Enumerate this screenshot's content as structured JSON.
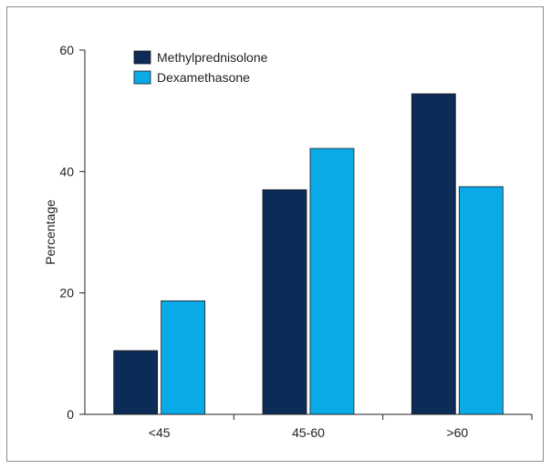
{
  "chart_data": {
    "type": "bar",
    "title": "",
    "xlabel": "",
    "ylabel": "Percentage",
    "ylim": [
      0,
      60
    ],
    "yticks": [
      0,
      20,
      40,
      60
    ],
    "categories": [
      "<45",
      "45-60",
      ">60"
    ],
    "series": [
      {
        "name": "Methylprednisolone",
        "color": "#0d2b57",
        "values": [
          10.5,
          37,
          52.8
        ]
      },
      {
        "name": "Dexamethasone",
        "color": "#0aaae8",
        "values": [
          18.7,
          43.8,
          37.5
        ]
      }
    ],
    "legend_position": "top-left",
    "grid": false
  }
}
